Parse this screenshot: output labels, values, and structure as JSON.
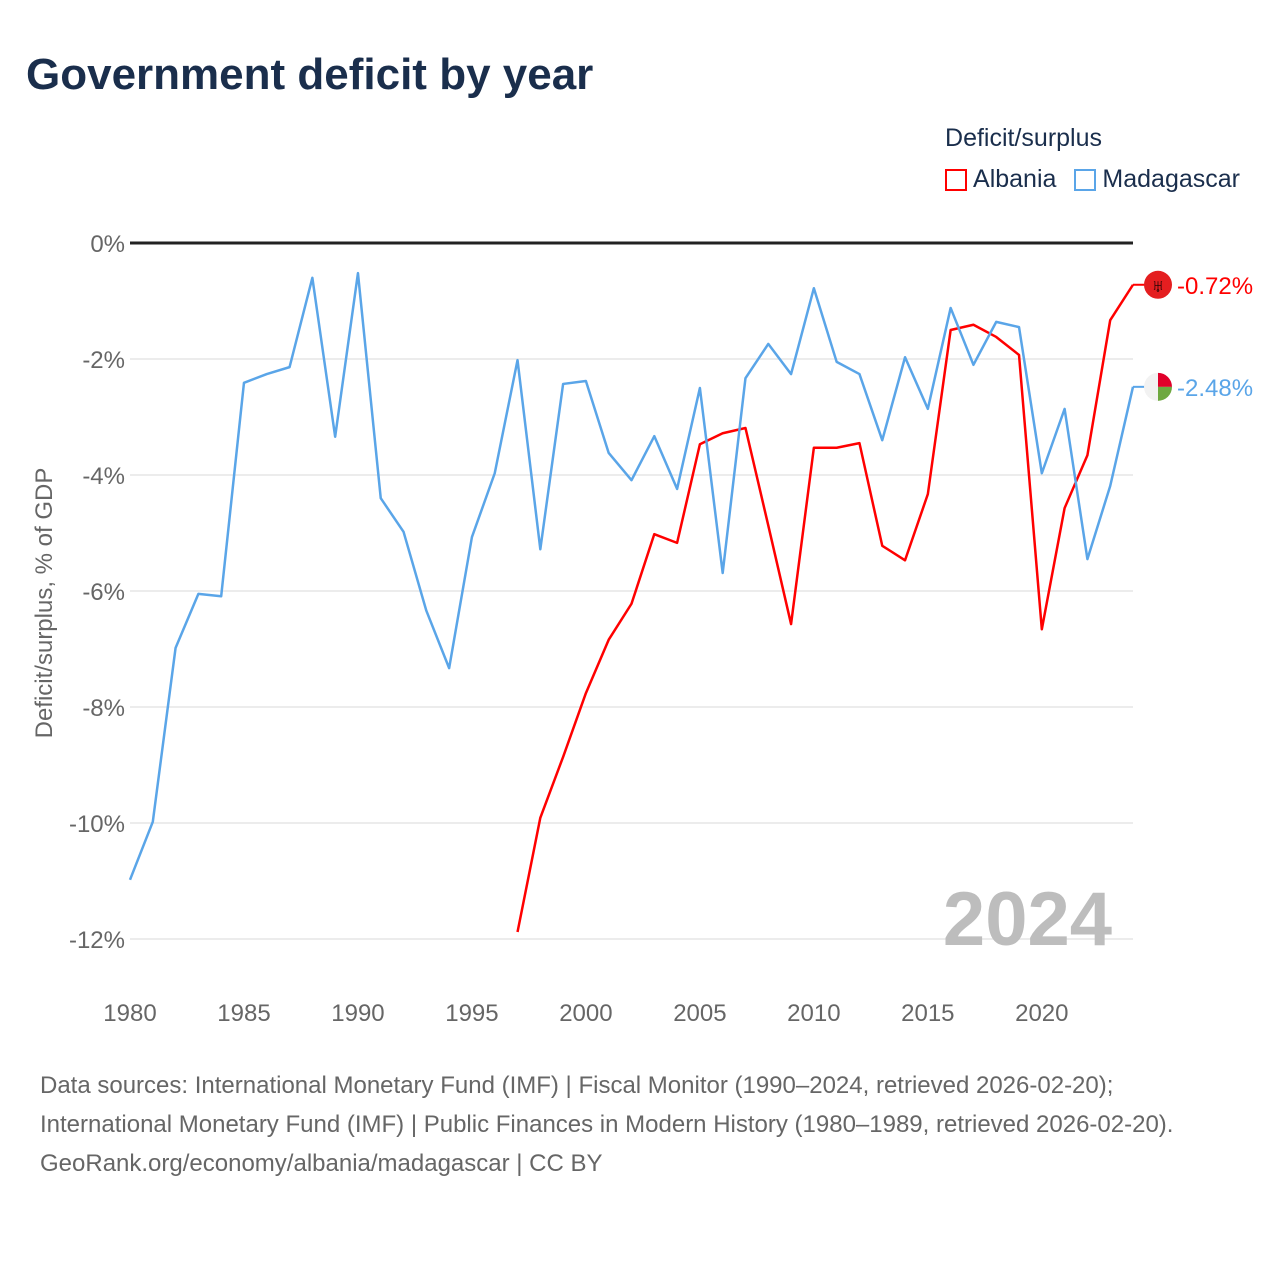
{
  "title": "Government deficit by year",
  "legend": {
    "title": "Deficit/surplus",
    "items": [
      {
        "name": "Albania",
        "color": "#ff0000"
      },
      {
        "name": "Madagascar",
        "color": "#5aa5e8"
      }
    ]
  },
  "chart_data": {
    "type": "line",
    "title": "Government deficit by year",
    "ylabel": "Deficit/surplus, % of GDP",
    "xlabel": "",
    "xlim": [
      1980,
      2024
    ],
    "ylim": [
      -12,
      0
    ],
    "xticks": [
      1980,
      1985,
      1990,
      1995,
      2000,
      2005,
      2010,
      2015,
      2020
    ],
    "yticks": [
      0,
      -2,
      -4,
      -6,
      -8,
      -10,
      -12
    ],
    "ytick_labels": [
      "0%",
      "-2%",
      "-4%",
      "-6%",
      "-8%",
      "-10%",
      "-12%"
    ],
    "grid": true,
    "annotation": "2024",
    "series": [
      {
        "name": "Albania",
        "color": "#ff0000",
        "end_label": "-0.72%",
        "flag": "albania-flag",
        "x": [
          1997,
          1998,
          1999,
          2000,
          2001,
          2002,
          2003,
          2004,
          2005,
          2006,
          2007,
          2008,
          2009,
          2010,
          2011,
          2012,
          2013,
          2014,
          2015,
          2016,
          2017,
          2018,
          2019,
          2020,
          2021,
          2022,
          2023,
          2024
        ],
        "values": [
          -11.88,
          -9.91,
          -8.86,
          -7.76,
          -6.84,
          -6.22,
          -5.02,
          -5.17,
          -3.47,
          -3.28,
          -3.19,
          -4.87,
          -6.57,
          -3.53,
          -3.53,
          -3.45,
          -5.22,
          -5.47,
          -4.33,
          -1.5,
          -1.41,
          -1.62,
          -1.93,
          -6.66,
          -4.57,
          -3.66,
          -1.33,
          -0.72
        ]
      },
      {
        "name": "Madagascar",
        "color": "#5aa5e8",
        "end_label": "-2.48%",
        "flag": "madagascar-flag",
        "x": [
          1980,
          1981,
          1982,
          1983,
          1984,
          1985,
          1986,
          1987,
          1988,
          1989,
          1990,
          1991,
          1992,
          1993,
          1994,
          1995,
          1996,
          1997,
          1998,
          1999,
          2000,
          2001,
          2002,
          2003,
          2004,
          2005,
          2006,
          2007,
          2008,
          2009,
          2010,
          2011,
          2012,
          2013,
          2014,
          2015,
          2016,
          2017,
          2018,
          2019,
          2020,
          2021,
          2022,
          2023,
          2024
        ],
        "values": [
          -10.98,
          -9.98,
          -6.98,
          -6.05,
          -6.09,
          -2.41,
          -2.26,
          -2.14,
          -0.6,
          -3.34,
          -0.52,
          -4.4,
          -4.98,
          -6.34,
          -7.33,
          -5.07,
          -3.97,
          -2.02,
          -5.28,
          -2.43,
          -2.38,
          -3.62,
          -4.09,
          -3.33,
          -4.24,
          -2.5,
          -5.69,
          -2.33,
          -1.74,
          -2.26,
          -0.78,
          -2.05,
          -2.26,
          -3.4,
          -1.97,
          -2.86,
          -1.12,
          -2.1,
          -1.36,
          -1.45,
          -3.97,
          -2.86,
          -5.45,
          -4.19,
          -2.48
        ]
      }
    ]
  },
  "footer": {
    "sources": "Data sources: International Monetary Fund (IMF) | Fiscal Monitor (1990–2024, retrieved 2026-02-20); International Monetary Fund (IMF) | Public Finances in Modern History (1980–1989, retrieved 2026-02-20).",
    "credit": "GeoRank.org/economy/albania/madagascar | CC BY"
  }
}
